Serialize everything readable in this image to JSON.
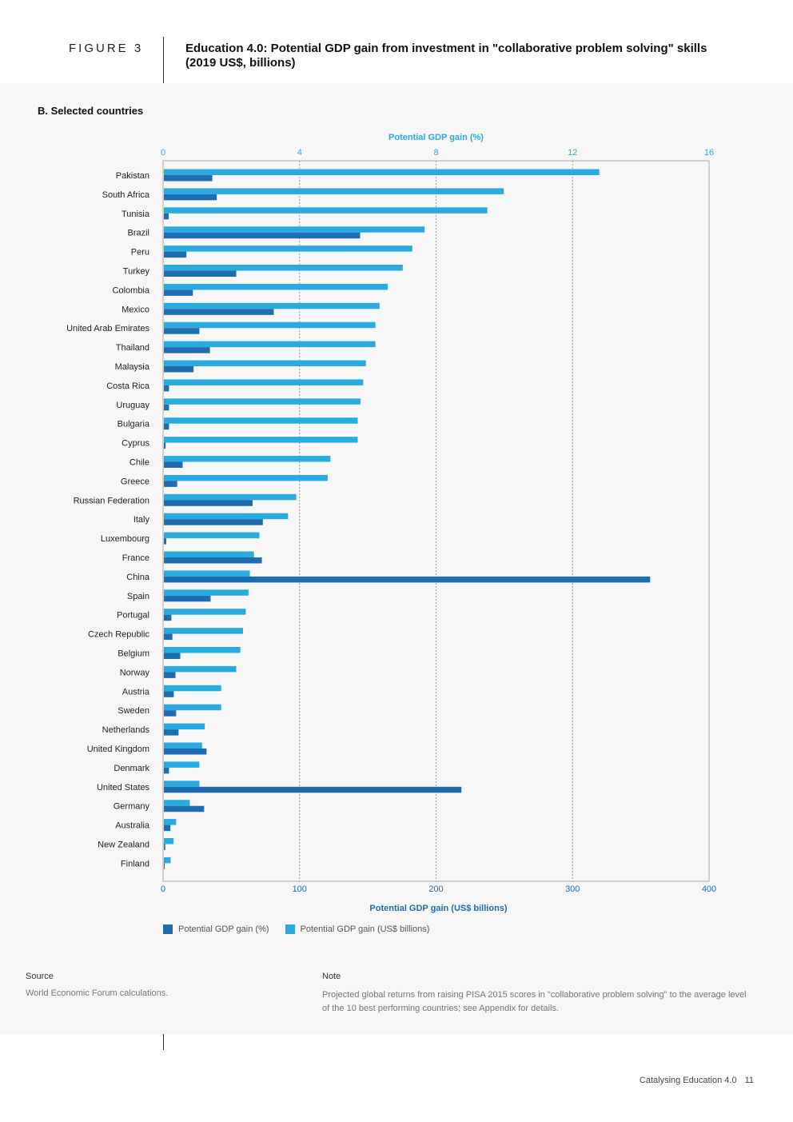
{
  "header": {
    "figure_label": "FIGURE 3",
    "title": "Education 4.0: Potential GDP gain from investment in \"collaborative problem solving\" skills (2019 US$, billions)"
  },
  "panel": {
    "subtitle": "B. Selected countries"
  },
  "colors": {
    "pct": "#1f6cb0",
    "usd": "#29abe2",
    "top_axis_text": "#29abe2",
    "bottom_axis_text": "#1f6cb0"
  },
  "legend": {
    "pct_label": "Potential GDP gain (%)",
    "usd_label": "Potential GDP gain (US$ billions)"
  },
  "chart_data": {
    "type": "bar",
    "orientation": "horizontal",
    "top_axis": {
      "label": "Potential GDP gain (%)",
      "range": [
        0,
        16
      ],
      "ticks": [
        0,
        4,
        8,
        12,
        16
      ]
    },
    "bottom_axis": {
      "label": "Potential GDP gain (US$ billions)",
      "range": [
        0,
        400
      ],
      "ticks": [
        0,
        100,
        200,
        300,
        400
      ]
    },
    "grid": "vertical dotted",
    "legend_position": "bottom-left",
    "categories": [
      "Pakistan",
      "South Africa",
      "Tunisia",
      "Brazil",
      "Peru",
      "Turkey",
      "Colombia",
      "Mexico",
      "United Arab Emirates",
      "Thailand",
      "Malaysia",
      "Costa Rica",
      "Uruguay",
      "Bulgaria",
      "Cyprus",
      "Chile",
      "Greece",
      "Russian Federation",
      "Italy",
      "Luxembourg",
      "France",
      "China",
      "Spain",
      "Portugal",
      "Czech Republic",
      "Belgium",
      "Norway",
      "Austria",
      "Sweden",
      "Netherlands",
      "United Kingdom",
      "Denmark",
      "United States",
      "Germany",
      "Australia",
      "New Zealand",
      "Finland"
    ],
    "series": [
      {
        "name": "Potential GDP gain (US$ billions)",
        "axis": "bottom",
        "values": [
          319,
          249,
          237,
          191,
          182,
          175,
          164,
          158,
          155,
          155,
          148,
          146,
          144,
          142,
          142,
          122,
          120,
          97,
          91,
          70,
          66,
          63,
          62,
          60,
          58,
          56,
          53,
          42,
          42,
          30,
          28,
          26,
          26,
          19,
          9,
          7,
          5
        ]
      },
      {
        "name": "Potential GDP gain (%)",
        "axis": "top",
        "values": [
          1.42,
          1.55,
          0.14,
          5.75,
          0.66,
          2.12,
          0.85,
          3.22,
          1.04,
          1.35,
          0.87,
          0.15,
          0.15,
          0.15,
          0.05,
          0.55,
          0.39,
          2.6,
          2.9,
          0.07,
          2.87,
          14.25,
          1.37,
          0.22,
          0.25,
          0.48,
          0.34,
          0.29,
          0.36,
          0.43,
          1.25,
          0.15,
          8.72,
          1.18,
          0.19,
          0.04,
          0.02
        ]
      }
    ]
  },
  "source": {
    "heading": "Source",
    "text": "World Economic Forum calculations."
  },
  "note": {
    "heading": "Note",
    "text": "Projected global returns from raising PISA 2015 scores in \"collaborative problem solving\" to the average level of the 10 best performing countries; see Appendix for details."
  },
  "footer": {
    "text": "Catalysing Education 4.0",
    "page": "11"
  }
}
